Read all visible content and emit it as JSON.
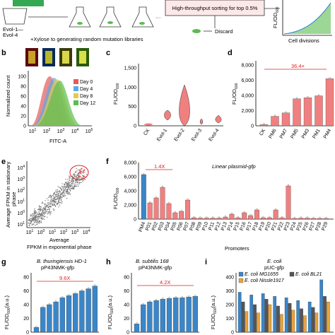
{
  "top": {
    "evol_labels": [
      "Evol-1—",
      "Evol-4"
    ],
    "xylose_text": "+Xylose to generating random mutation libraries",
    "dots": "···",
    "sorting_text": "High-throughput sorting for top 0.5%",
    "discard_text": "Discard",
    "fl_label": "FL/OD",
    "fl_sub": "600",
    "cell_div_label": "Cell divisions"
  },
  "panels": {
    "b": {
      "letter": "b",
      "ylabel": "Normalized count",
      "xlabel": "FITC-A",
      "yticks": [
        "100",
        "80",
        "60",
        "40",
        "20",
        "0"
      ],
      "xticks": [
        "10",
        "10",
        "10",
        "10",
        "10"
      ],
      "xexp": [
        "1",
        "2",
        "3",
        "4",
        "5"
      ],
      "legend": [
        {
          "name": "Day 0",
          "color": "#e45a5a"
        },
        {
          "name": "Day 4",
          "color": "#5aa9e6"
        },
        {
          "name": "Day 8",
          "color": "#e6c94d"
        },
        {
          "name": "Day 12",
          "color": "#5bbd4f"
        }
      ]
    },
    "c": {
      "letter": "c",
      "ylabel": "FL/OD",
      "ylabel_sub": "600",
      "yticks": [
        "1,500",
        "1,000",
        "500",
        "0"
      ],
      "categories": [
        "CK",
        "Evol-1",
        "Evol-2",
        "Evol-3",
        "Evol-4"
      ]
    },
    "d": {
      "letter": "d",
      "ylabel": "FL/OD",
      "ylabel_sub": "600",
      "yticks": [
        "8,000",
        "6,000",
        "4,000",
        "2,000",
        "0"
      ],
      "annotation": "36.4×"
    },
    "e": {
      "letter": "e",
      "ylabel_1": "Average FPKM in stationary",
      "ylabel_2": "phase",
      "xlabel_1": "Average",
      "xlabel_2": "FPKM in exponential phase",
      "ticks": [
        "10",
        "10",
        "10",
        "10",
        "10",
        "10"
      ],
      "texp": [
        "1",
        "0",
        "1",
        "2",
        "3",
        "4"
      ]
    },
    "f": {
      "letter": "f",
      "ylabel": "FL/OD",
      "ylabel_sub": "600",
      "yticks": [
        "8,000",
        "6,000",
        "4,000",
        "2,000",
        "0"
      ],
      "title": "Linear plasmid-gfp",
      "annotation": "1.4X",
      "xlabel": "Promoters"
    },
    "g": {
      "letter": "g",
      "title_1": "B. thuringiensis HD-1",
      "title_2": "pP43NMK-gfp",
      "annotation": "9.6X",
      "ylabel": "FL/OD",
      "ylabel_sub": "600",
      "ylabel_unit": "(a.u.)",
      "yticks": [
        "80",
        "60",
        "40",
        "20",
        "0"
      ]
    },
    "h": {
      "letter": "h",
      "title_1": "B. subtilis 168",
      "title_2": "pP43NMK-gfp",
      "annotation": "4.2X",
      "ylabel": "FL/OD",
      "ylabel_sub": "600",
      "ylabel_unit": "(a.u.)",
      "yticks": [
        "80",
        "60",
        "40",
        "20",
        "0"
      ]
    },
    "i": {
      "letter": "i",
      "title_1": "E. coli",
      "title_2": "pUC-gfp",
      "ylabel": "FL/OD",
      "ylabel_sub": "600",
      "ylabel_unit": "(a.u.)",
      "yticks": [
        "400",
        "300",
        "200",
        "100",
        "0"
      ],
      "legend": [
        {
          "name": "E. coli MG1655",
          "color": "#3a86c8"
        },
        {
          "name": "E. coli BL21",
          "color": "#555555"
        },
        {
          "name": "E. coli Nissle1917",
          "color": "#e8a33a"
        }
      ]
    }
  },
  "chart_data": [
    {
      "type": "bar",
      "panel": "d",
      "categories": [
        "CK",
        "PM6",
        "PM7",
        "PM5",
        "PM3",
        "PM1",
        "PM4"
      ],
      "values": [
        170,
        1250,
        1700,
        3550,
        3700,
        3950,
        6200
      ],
      "ylim": [
        0,
        8000
      ],
      "color": "#f08080"
    },
    {
      "type": "bar",
      "panel": "f",
      "categories": [
        "PM4",
        "P01",
        "P02",
        "P03",
        "P04",
        "P05",
        "P06",
        "P07",
        "P08",
        "P09",
        "P10",
        "P11",
        "P12",
        "P13",
        "P14",
        "P15",
        "P16",
        "P17",
        "P18",
        "P19",
        "P20",
        "P21",
        "P22",
        "P23",
        "P24",
        "P25",
        "P26",
        "P27",
        "P28",
        "P29"
      ],
      "values": [
        6300,
        2300,
        3000,
        4500,
        2200,
        900,
        1100,
        2700,
        200,
        150,
        150,
        150,
        150,
        300,
        700,
        200,
        900,
        500,
        1300,
        200,
        200,
        1300,
        200,
        4700,
        100,
        150,
        150,
        100,
        100,
        100
      ],
      "ylim": [
        0,
        8000
      ],
      "colors": [
        "#3a86c8",
        "#f08080"
      ]
    },
    {
      "type": "bar",
      "panel": "g",
      "values": [
        7,
        36,
        40,
        44,
        50,
        53,
        56,
        60,
        63,
        67
      ],
      "ylim": [
        0,
        80
      ],
      "color": "#3a86c8"
    },
    {
      "type": "bar",
      "panel": "h",
      "values": [
        12,
        40,
        44,
        46,
        48,
        49,
        50,
        50,
        51,
        52
      ],
      "ylim": [
        0,
        80
      ],
      "color": "#3a86c8"
    },
    {
      "type": "bar",
      "panel": "i",
      "series": [
        {
          "name": "E. coli MG1655",
          "values": [
            290,
            270,
            280,
            260,
            250,
            230,
            220,
            380
          ]
        },
        {
          "name": "E. coli BL21",
          "values": [
            220,
            200,
            240,
            190,
            210,
            170,
            180,
            260
          ]
        },
        {
          "name": "E. coli Nissle1917",
          "values": [
            150,
            140,
            200,
            130,
            160,
            120,
            140,
            220
          ]
        }
      ],
      "ylim": [
        0,
        400
      ]
    }
  ]
}
